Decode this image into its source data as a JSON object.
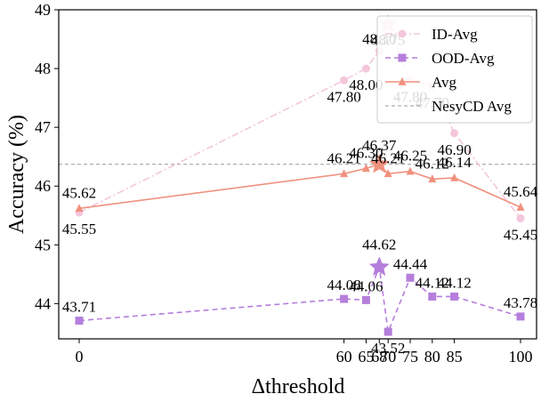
{
  "chart_data": {
    "type": "line",
    "xlabel": "Δthreshold",
    "ylabel": "Accuracy (%)",
    "xticks": [
      0,
      60,
      65,
      68,
      70,
      75,
      80,
      85,
      100
    ],
    "xtick_labels": [
      "0",
      "60",
      "65",
      "68",
      "70",
      "75",
      "80",
      "85",
      "100"
    ],
    "ylim": [
      43.4,
      49.0
    ],
    "yticks": [
      44,
      45,
      46,
      47,
      48,
      49
    ],
    "grid": false,
    "legend_position": "top-right",
    "reference_line": {
      "name": "NesyCD Avg",
      "value": 46.37,
      "color": "#999999"
    },
    "series": [
      {
        "name": "ID-Avg",
        "color": "#f4c6dc",
        "marker": "circle",
        "line_style": "dashdot",
        "x": [
          0,
          60,
          65,
          68,
          70,
          75,
          80,
          85,
          100
        ],
        "values": [
          45.55,
          47.8,
          48.0,
          48.3,
          48.75,
          47.8,
          47.7,
          46.9,
          45.45
        ],
        "labels": [
          "45.55",
          "47.80",
          "48.00",
          "48.30",
          "48.75",
          "47.80",
          "47.70",
          "46.90",
          "45.45"
        ],
        "highlight_index": 4
      },
      {
        "name": "OOD-Avg",
        "color": "#b57edc",
        "marker": "square",
        "line_style": "dashed",
        "x": [
          0,
          60,
          65,
          68,
          70,
          75,
          80,
          85,
          100
        ],
        "values": [
          43.71,
          44.08,
          44.06,
          44.62,
          43.52,
          44.44,
          44.12,
          44.12,
          43.78
        ],
        "labels": [
          "43.71",
          "44.08",
          "44.06",
          "44.62",
          "43.52",
          "44.44",
          "44.12",
          "44.12",
          "43.78"
        ],
        "highlight_index": 3
      },
      {
        "name": "Avg",
        "color": "#f0917e",
        "marker": "triangle",
        "line_style": "solid",
        "x": [
          0,
          60,
          65,
          68,
          70,
          75,
          80,
          85,
          100
        ],
        "values": [
          45.62,
          46.21,
          46.3,
          46.37,
          46.21,
          46.25,
          46.12,
          46.14,
          45.64
        ],
        "labels": [
          "45.62",
          "46.21",
          "46.30",
          "46.37",
          "46.21",
          "46.25",
          "46.12",
          "46.14",
          "45.64"
        ],
        "highlight_index": 3
      }
    ]
  }
}
